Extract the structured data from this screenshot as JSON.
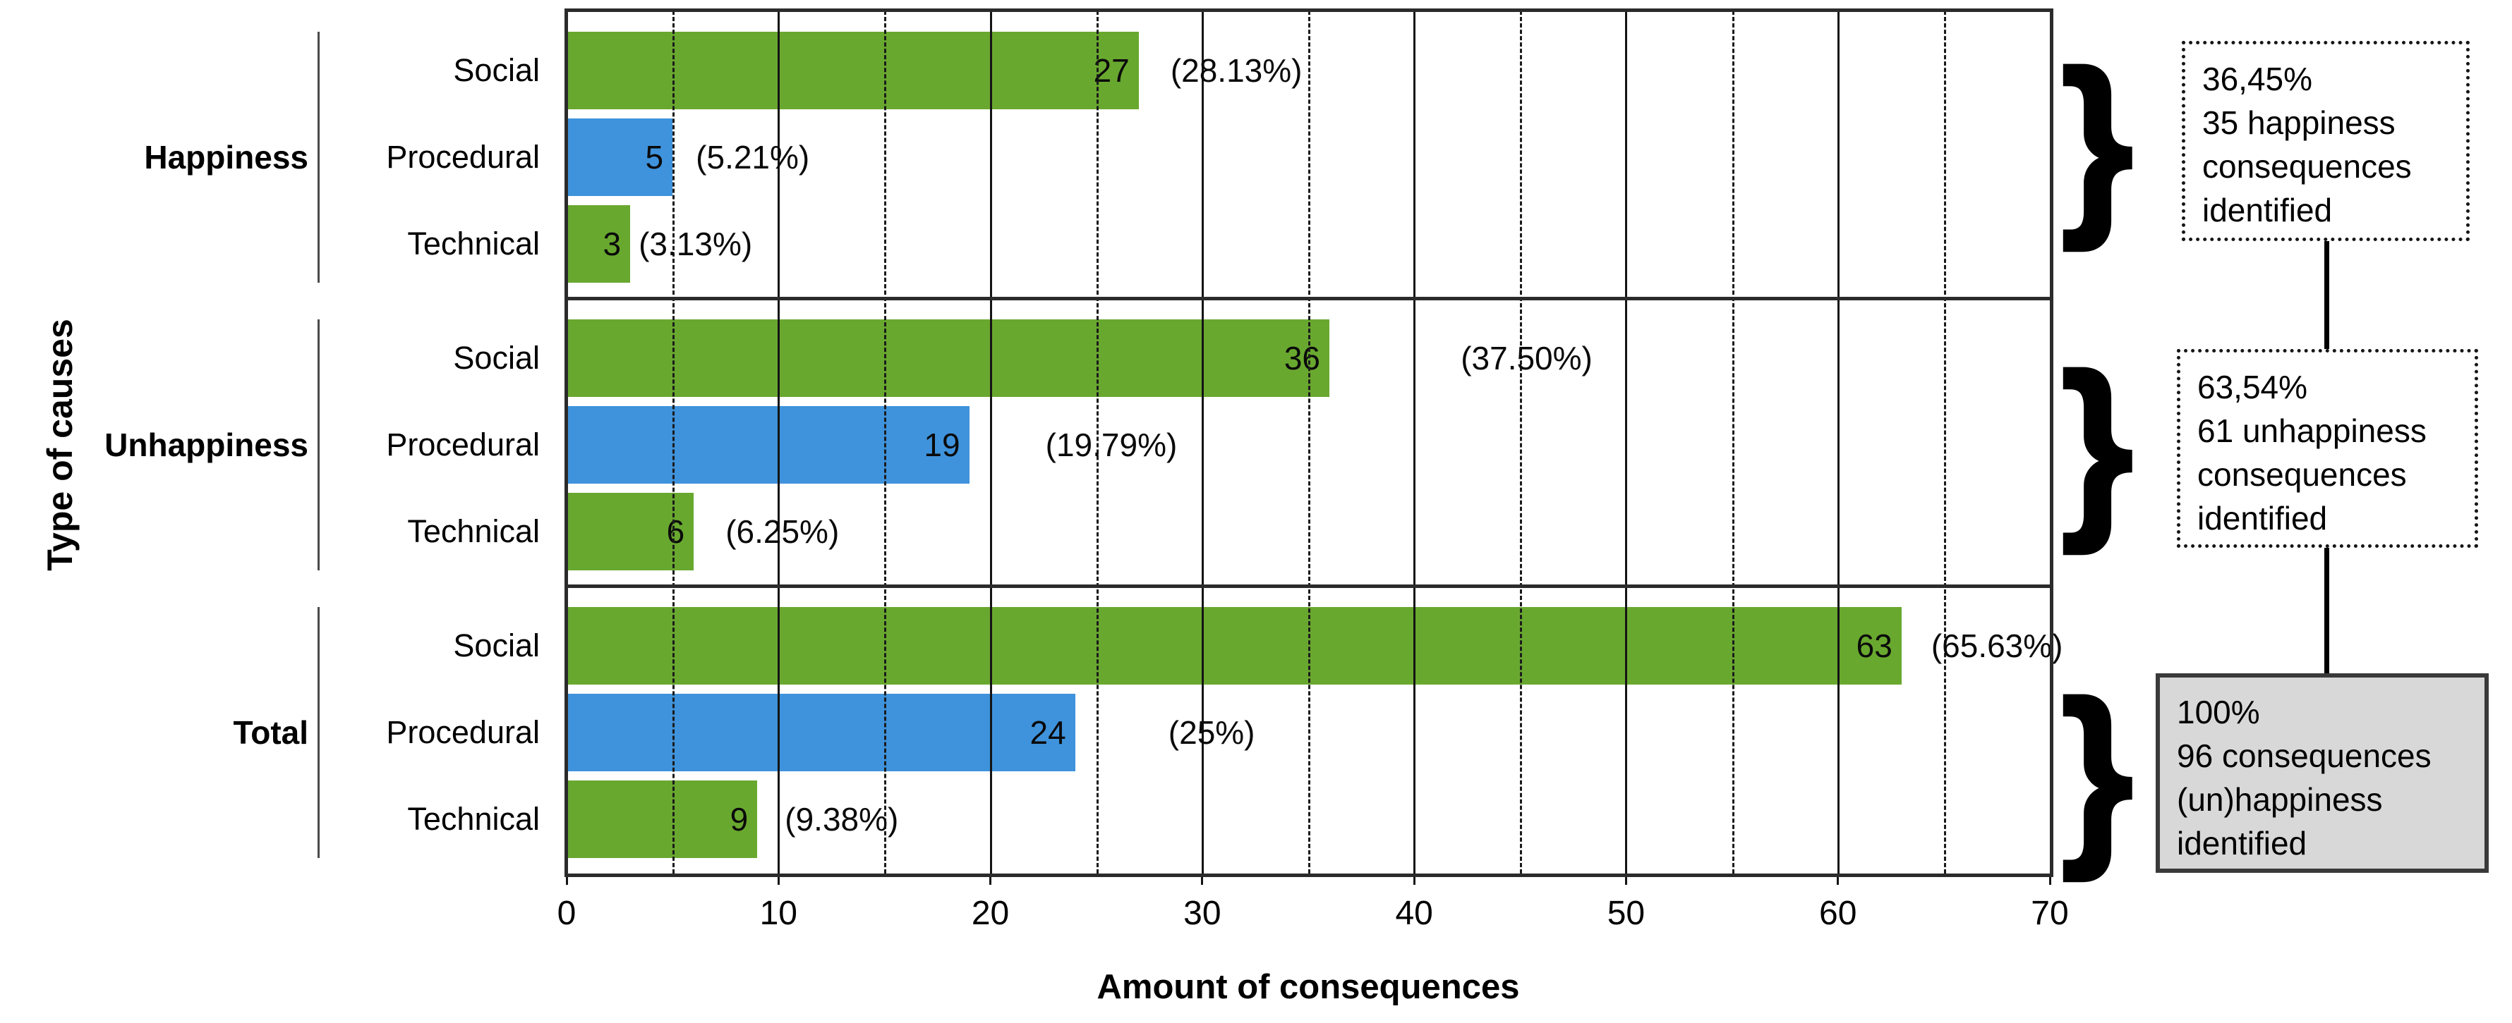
{
  "chart_data": {
    "type": "bar",
    "orientation": "horizontal",
    "title": "",
    "xlabel": "Amount of consequences",
    "ylabel": "Type of causes",
    "xlim": [
      0,
      70
    ],
    "x_ticks": [
      "0",
      "10",
      "20",
      "30",
      "40",
      "50",
      "60",
      "70"
    ],
    "x_tick_values": [
      0,
      10,
      20,
      30,
      40,
      50,
      60,
      70
    ],
    "minor_gridline_values": [
      5,
      15,
      25,
      35,
      45,
      55,
      65
    ],
    "grid": "vertical, solid at multiples of 10, dashed at multiples of 5",
    "legend_position": "none",
    "groups": [
      {
        "label": "Happiness",
        "rows": [
          {
            "category": "Social",
            "value": 27,
            "pct": "(28.13%)",
            "color": "green",
            "pct_x": 28.5
          },
          {
            "category": "Procedural",
            "value": 5,
            "pct": "(5.21%)",
            "color": "blue",
            "pct_x": 6.1
          },
          {
            "category": "Technical",
            "value": 3,
            "pct": "(3.13%)",
            "color": "green",
            "pct_x": 3.4
          }
        ]
      },
      {
        "label": "Unhappiness",
        "rows": [
          {
            "category": "Social",
            "value": 36,
            "pct": "(37.50%)",
            "color": "green",
            "pct_x": 42.2
          },
          {
            "category": "Procedural",
            "value": 19,
            "pct": "(19.79%)",
            "color": "blue",
            "pct_x": 22.6
          },
          {
            "category": "Technical",
            "value": 6,
            "pct": "(6.25%)",
            "color": "green",
            "pct_x": 7.5
          }
        ]
      },
      {
        "label": "Total",
        "rows": [
          {
            "category": "Social",
            "value": 63,
            "pct": "(65.63%)",
            "color": "green",
            "pct_x": 64.4
          },
          {
            "category": "Procedural",
            "value": 24,
            "pct": "(25%)",
            "color": "blue",
            "pct_x": 28.4
          },
          {
            "category": "Technical",
            "value": 9,
            "pct": "(9.38%)",
            "color": "green",
            "pct_x": 10.3
          }
        ]
      }
    ],
    "annotations": [
      {
        "lines": [
          "36,45%",
          "35 happiness",
          "consequences",
          "identified"
        ],
        "style": "dotted"
      },
      {
        "lines": [
          "63,54%",
          "61 unhappiness",
          "consequences",
          "identified"
        ],
        "style": "dotted"
      },
      {
        "lines": [
          "100%",
          "96 consequences",
          "(un)happiness",
          "identified"
        ],
        "style": "solid-gray"
      }
    ],
    "brace_glyph": "}",
    "colors": {
      "green": "#69a82f",
      "blue": "#3f93dc",
      "annotation_gray": "#d8d8d8",
      "line": "#1b1b1b"
    }
  }
}
